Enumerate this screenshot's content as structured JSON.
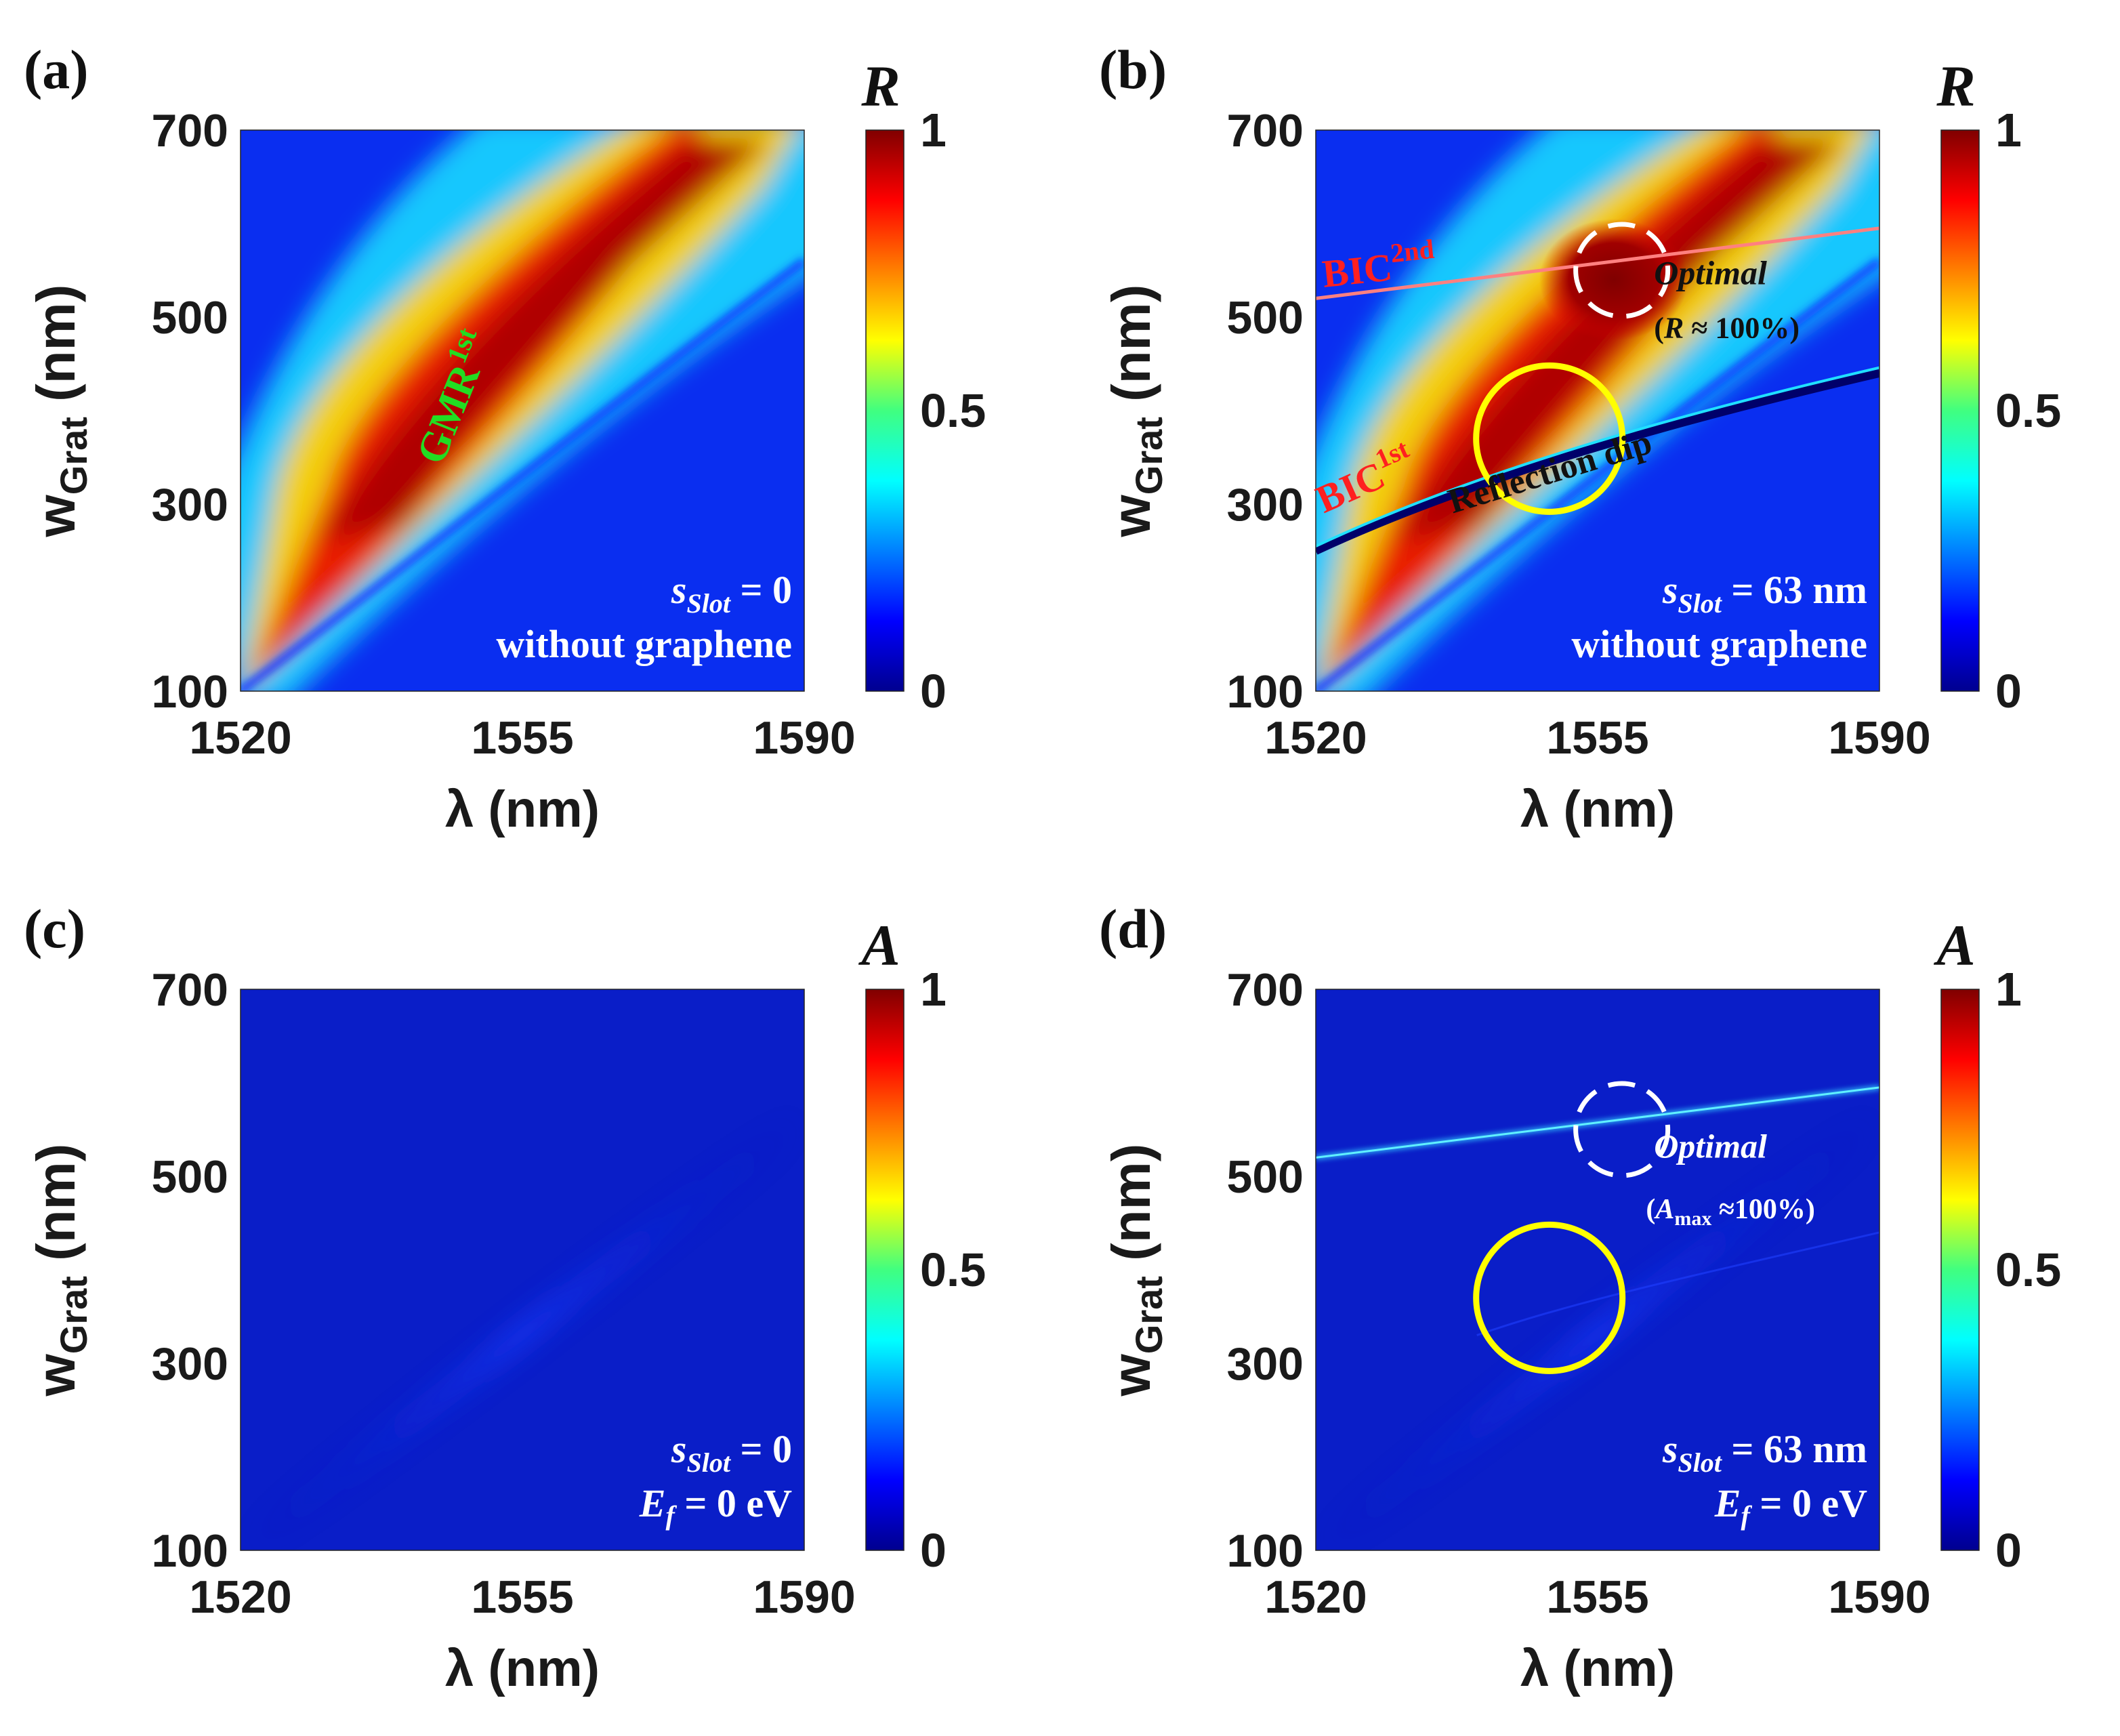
{
  "chart_data": [
    {
      "type": "heatmap",
      "panel_label": "(a)",
      "quantity": "R",
      "xlabel": "λ (nm)",
      "ylabel_main": "w",
      "ylabel_sub": "Grat",
      "ylabel_unit": "(nm)",
      "x_range": [
        1520,
        1590
      ],
      "y_range": [
        100,
        700
      ],
      "x_ticks": [
        "1520",
        "1555",
        "1590"
      ],
      "y_ticks": [
        "100",
        "300",
        "500",
        "700"
      ],
      "colorbar_ticks": [
        "0",
        "0.5",
        "1"
      ],
      "colorbar_range": [
        0,
        1
      ],
      "notes": {
        "line1_main": "s",
        "line1_sub": "Slot",
        "line1_rest": " = 0",
        "line2": "without graphene"
      },
      "annotations": [
        {
          "text_main": "GMR",
          "text_sup": "1st",
          "color": "#22dd22"
        }
      ]
    },
    {
      "type": "heatmap",
      "panel_label": "(b)",
      "quantity": "R",
      "xlabel": "λ (nm)",
      "ylabel_main": "w",
      "ylabel_sub": "Grat",
      "ylabel_unit": "(nm)",
      "x_range": [
        1520,
        1590
      ],
      "y_range": [
        100,
        700
      ],
      "x_ticks": [
        "1520",
        "1555",
        "1590"
      ],
      "y_ticks": [
        "100",
        "300",
        "500",
        "700"
      ],
      "colorbar_ticks": [
        "0",
        "0.5",
        "1"
      ],
      "colorbar_range": [
        0,
        1
      ],
      "notes": {
        "line1_main": "s",
        "line1_sub": "Slot",
        "line1_rest": " = 63 nm",
        "line2": "without graphene"
      },
      "annotations": [
        {
          "text_main": "BIC",
          "text_sup": "2nd",
          "color": "#ff2020"
        },
        {
          "text_main": "BIC",
          "text_sup": "1st",
          "color": "#ff2020"
        },
        {
          "text": "Optimal",
          "color": "#111111"
        },
        {
          "text_open": "(",
          "text_var": "R",
          "text_rest": " ≈ 100%)",
          "color": "#111111"
        },
        {
          "text": "Reflection dip",
          "color": "#111111"
        }
      ],
      "markers": [
        {
          "kind": "dashed-circle",
          "color": "#ffffff",
          "center_x": 1558,
          "center_y": 550
        },
        {
          "kind": "circle",
          "color": "#ffff00",
          "center_x": 1549,
          "center_y": 370
        }
      ]
    },
    {
      "type": "heatmap",
      "panel_label": "(c)",
      "quantity": "A",
      "xlabel": "λ (nm)",
      "ylabel_main": "w",
      "ylabel_sub": "Grat",
      "ylabel_unit": "(nm)",
      "x_range": [
        1520,
        1590
      ],
      "y_range": [
        100,
        700
      ],
      "x_ticks": [
        "1520",
        "1555",
        "1590"
      ],
      "y_ticks": [
        "100",
        "300",
        "500",
        "700"
      ],
      "colorbar_ticks": [
        "0",
        "0.5",
        "1"
      ],
      "colorbar_range": [
        0,
        1
      ],
      "notes": {
        "line1_main": "s",
        "line1_sub": "Slot",
        "line1_rest": " = 0",
        "line2_main": "E",
        "line2_sub": "f",
        "line2_rest": " = 0 eV"
      }
    },
    {
      "type": "heatmap",
      "panel_label": "(d)",
      "quantity": "A",
      "xlabel": "λ (nm)",
      "ylabel_main": "w",
      "ylabel_sub": "Grat",
      "ylabel_unit": "(nm)",
      "x_range": [
        1520,
        1590
      ],
      "y_range": [
        100,
        700
      ],
      "x_ticks": [
        "1520",
        "1555",
        "1590"
      ],
      "y_ticks": [
        "100",
        "300",
        "500",
        "700"
      ],
      "colorbar_ticks": [
        "0",
        "0.5",
        "1"
      ],
      "colorbar_range": [
        0,
        1
      ],
      "notes": {
        "line1_main": "s",
        "line1_sub": "Slot",
        "line1_rest": " = 63 nm",
        "line2_main": "E",
        "line2_sub": "f",
        "line2_rest": " = 0 eV"
      },
      "annotations": [
        {
          "text": "Optimal",
          "color": "#ffffff"
        },
        {
          "text_open": "(",
          "text_var": "A",
          "text_varsub": "max",
          "text_rest": " ≈100%)",
          "color": "#ffffff"
        }
      ],
      "markers": [
        {
          "kind": "dashed-circle",
          "color": "#ffffff",
          "center_x": 1558,
          "center_y": 550
        },
        {
          "kind": "circle",
          "color": "#ffff00",
          "center_x": 1549,
          "center_y": 370
        }
      ]
    }
  ]
}
